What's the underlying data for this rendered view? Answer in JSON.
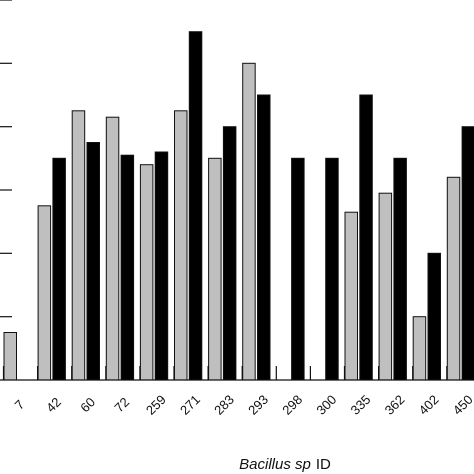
{
  "chart_data": {
    "type": "bar",
    "title": "",
    "xlabel": {
      "italic": "Bacillus sp",
      "plain": "ID"
    },
    "ylabel": "",
    "categories": [
      "7",
      "42",
      "60",
      "72",
      "259",
      "271",
      "283",
      "293",
      "298",
      "300",
      "335",
      "362",
      "402",
      "450"
    ],
    "series": [
      {
        "color": "#bfbfbf",
        "values": [
          0.75,
          2.75,
          4.25,
          4.15,
          3.4,
          4.25,
          3.5,
          5.0,
          0,
          0,
          2.65,
          2.95,
          1.0,
          3.2
        ]
      },
      {
        "color": "#000000",
        "values": [
          0,
          3.5,
          3.75,
          3.55,
          3.6,
          5.5,
          4.0,
          4.5,
          3.5,
          3.5,
          4.5,
          3.5,
          2.0,
          4.0
        ]
      }
    ],
    "ylim": [
      0,
      6
    ],
    "yticks": [
      1,
      2,
      3,
      4,
      5,
      6
    ],
    "grid": false,
    "legend": "none"
  }
}
